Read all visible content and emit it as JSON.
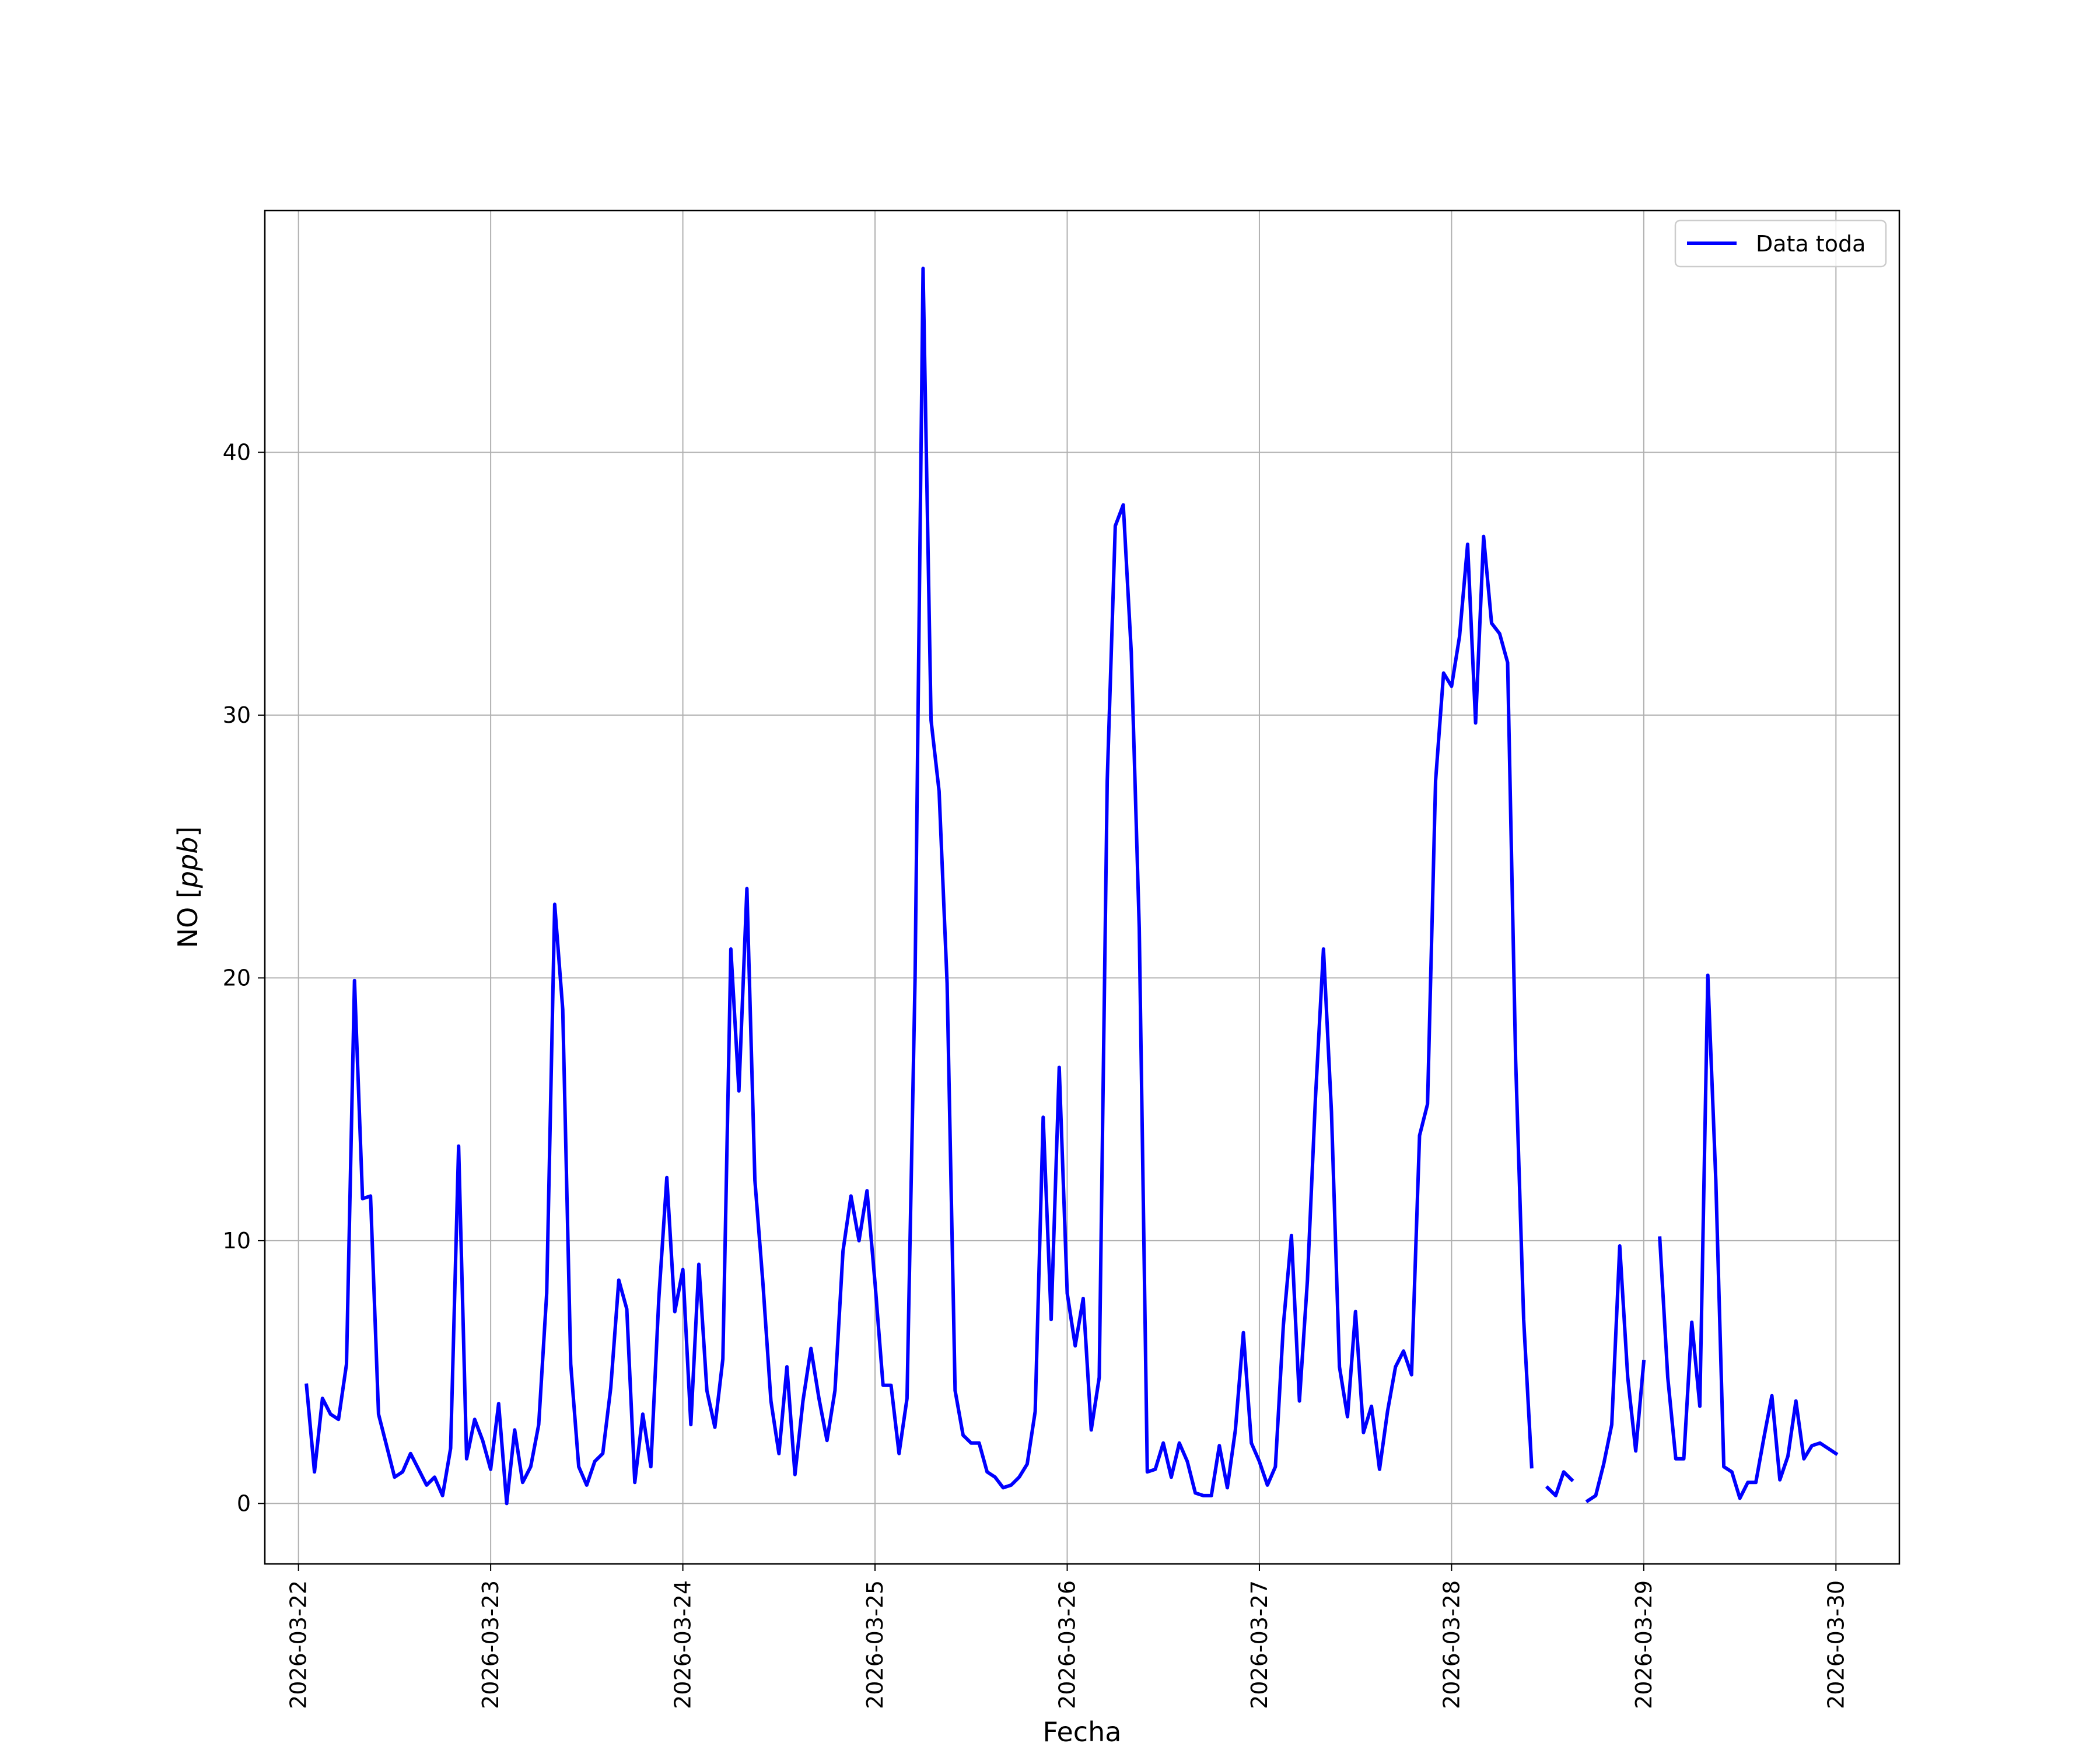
{
  "chart_data": {
    "type": "line",
    "xlabel": "Fecha",
    "ylabel": "NO [ppb]",
    "ylabel_parts": {
      "plain": "NO [",
      "italic": "ppb",
      "close": "]"
    },
    "x_type": "datetime",
    "xlim": [
      "2026-03-21T19:48",
      "2026-03-30T07:55"
    ],
    "ylim": [
      -2.3,
      49.2
    ],
    "xticks": [
      "2026-03-22",
      "2026-03-23",
      "2026-03-24",
      "2026-03-25",
      "2026-03-26",
      "2026-03-27",
      "2026-03-28",
      "2026-03-29",
      "2026-03-30"
    ],
    "yticks": [
      0,
      10,
      20,
      30,
      40
    ],
    "grid": true,
    "legend_position": "upper right",
    "series": [
      {
        "name": "Data toda",
        "color": "#0000ff",
        "start": "2026-03-22T01:00",
        "interval_hours": 1,
        "values": [
          4.5,
          1.2,
          4.0,
          3.4,
          3.2,
          5.3,
          19.9,
          11.6,
          11.7,
          3.4,
          2.2,
          1.0,
          1.2,
          1.9,
          1.3,
          0.7,
          1.0,
          0.3,
          2.1,
          13.6,
          1.7,
          3.2,
          2.4,
          1.3,
          3.8,
          0.0,
          2.8,
          0.8,
          1.4,
          3.0,
          8.0,
          22.8,
          18.8,
          5.3,
          1.4,
          0.7,
          1.6,
          1.9,
          4.4,
          8.5,
          7.4,
          0.8,
          3.4,
          1.4,
          7.8,
          12.4,
          7.3,
          8.9,
          3.0,
          9.1,
          4.3,
          2.9,
          5.5,
          21.1,
          15.7,
          23.4,
          12.3,
          8.4,
          3.9,
          1.9,
          5.2,
          1.1,
          3.9,
          5.9,
          4.0,
          2.4,
          4.3,
          9.6,
          11.7,
          10.0,
          11.9,
          8.4,
          4.5,
          4.5,
          1.9,
          4.0,
          20.0,
          47.0,
          29.8,
          27.1,
          19.8,
          4.3,
          2.6,
          2.3,
          2.3,
          1.2,
          1.0,
          0.6,
          0.7,
          1.0,
          1.5,
          3.5,
          14.7,
          7.0,
          16.6,
          8.0,
          6.0,
          7.8,
          2.8,
          4.8,
          27.5,
          37.2,
          38.0,
          32.4,
          21.9,
          1.2,
          1.3,
          2.3,
          1.0,
          2.3,
          1.6,
          0.4,
          0.3,
          0.3,
          2.2,
          0.6,
          2.8,
          6.5,
          2.3,
          1.6,
          0.7,
          1.4,
          6.8,
          10.2,
          3.9,
          8.5,
          15.4,
          21.1,
          14.9,
          5.2,
          3.3,
          7.3,
          2.7,
          3.7,
          1.3,
          3.5,
          5.2,
          5.8,
          4.9,
          14.0,
          15.2,
          27.5,
          31.6,
          31.1,
          33.0,
          36.5,
          29.7,
          36.8,
          33.5,
          33.1,
          32.0,
          16.9,
          7.0,
          1.4,
          null,
          0.6,
          0.3,
          1.2,
          0.9,
          null,
          0.1,
          0.3,
          1.5,
          3.0,
          9.8,
          4.8,
          2.0,
          5.4,
          null,
          10.1,
          4.8,
          1.7,
          1.7,
          6.9,
          3.7,
          20.1,
          12.3,
          1.4,
          1.2,
          0.2,
          0.8,
          0.8,
          2.5,
          4.1,
          0.9,
          1.8,
          3.9,
          1.7,
          2.2,
          2.3,
          2.1,
          1.9
        ]
      }
    ]
  }
}
